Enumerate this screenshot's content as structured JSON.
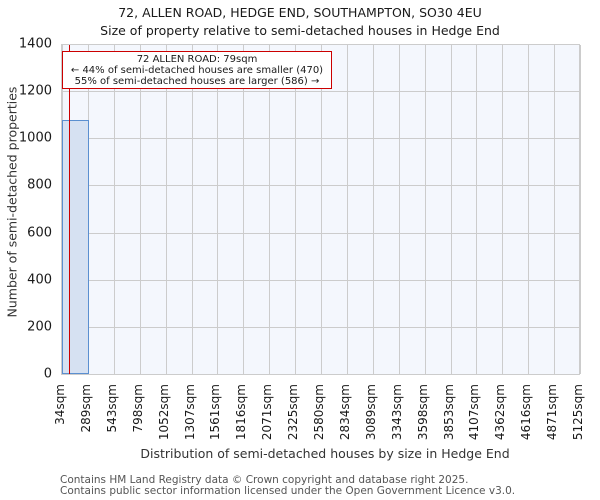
{
  "chart_data": {
    "type": "bar",
    "title": "72, ALLEN ROAD, HEDGE END, SOUTHAMPTON, SO30 4EU",
    "subtitle": "Size of property relative to semi-detached houses in Hedge End",
    "xlabel": "Distribution of semi-detached houses by size in Hedge End",
    "ylabel": "Number of semi-detached properties",
    "ylim": [
      0,
      1400
    ],
    "yticks": [
      0,
      200,
      400,
      600,
      800,
      1000,
      1200,
      1400
    ],
    "tick_labels": [
      "34sqm",
      "289sqm",
      "543sqm",
      "798sqm",
      "1052sqm",
      "1307sqm",
      "1561sqm",
      "1816sqm",
      "2071sqm",
      "2325sqm",
      "2580sqm",
      "2834sqm",
      "3089sqm",
      "3343sqm",
      "3598sqm",
      "3853sqm",
      "4107sqm",
      "4362sqm",
      "4616sqm",
      "4871sqm",
      "5125sqm"
    ],
    "categories": [
      "34-289",
      "289-543",
      "543-798",
      "798-1052",
      "1052-1307",
      "1307-1561",
      "1561-1816",
      "1816-2071",
      "2071-2325",
      "2325-2580",
      "2580-2834",
      "2834-3089",
      "3089-3343",
      "3343-3598",
      "3598-3853",
      "3853-4107",
      "4107-4362",
      "4362-4616",
      "4616-4871",
      "4871-5125"
    ],
    "values": [
      1076,
      0,
      0,
      0,
      0,
      0,
      0,
      0,
      0,
      0,
      0,
      0,
      0,
      0,
      0,
      0,
      0,
      0,
      0,
      0
    ],
    "grid": true,
    "marker": {
      "value_sqm": 79,
      "color": "#cc0000"
    },
    "annotation": {
      "line1": "72 ALLEN ROAD: 79sqm",
      "line2": "← 44% of semi-detached houses are smaller (470)",
      "line3": "55% of semi-detached houses are larger (586) →"
    },
    "colors": {
      "bar_fill": "#d6e1f2",
      "bar_edge": "#5b8fd0",
      "plot_bg": "#f4f7fd"
    }
  },
  "footer": {
    "line1": "Contains HM Land Registry data © Crown copyright and database right 2025.",
    "line2": "Contains public sector information licensed under the Open Government Licence v3.0."
  }
}
